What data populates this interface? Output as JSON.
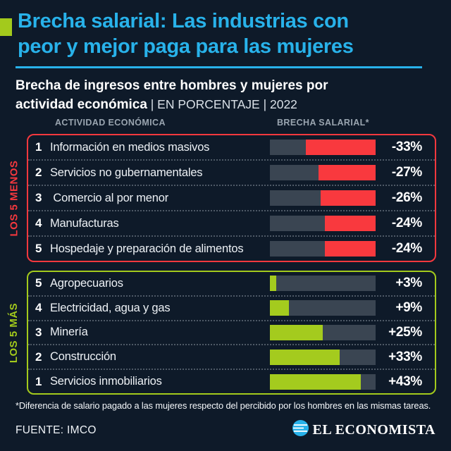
{
  "header": {
    "title_line1": "Brecha salarial: Las industrias con",
    "title_line2": "peor y mejor paga para las mujeres"
  },
  "subtitle": {
    "bold_line1": "Brecha de ingresos entre hombres y mujeres por",
    "bold_line2": "actividad económica",
    "meta": " | EN PORCENTAJE | 2022"
  },
  "columns": {
    "activity": "ACTIVIDAD ECONÓMICA",
    "gap": "BRECHA SALARIAL*"
  },
  "chart_data": {
    "type": "bar",
    "title": "Brecha salarial: Las industrias con peor y mejor paga para las mujeres",
    "subtitle": "Brecha de ingresos entre hombres y mujeres por actividad económica",
    "unit": "porcentaje",
    "year": "2022",
    "scale_max": 50,
    "xlim": [
      0,
      50
    ],
    "legend_position": "none",
    "grid": false,
    "groups": [
      {
        "name": "LOS 5 MENOS",
        "direction": "negative",
        "color": "#f9393e",
        "rows": [
          {
            "rank": "1",
            "label": "Información en medios masivos",
            "value": -33,
            "display": "-33%"
          },
          {
            "rank": "2",
            "label": "Servicios no gubernamentales",
            "value": -27,
            "display": "-27%"
          },
          {
            "rank": "3",
            "label": " Comercio al por menor",
            "value": -26,
            "display": "-26%"
          },
          {
            "rank": "4",
            "label": "Manufacturas",
            "value": -24,
            "display": "-24%"
          },
          {
            "rank": "5",
            "label": "Hospedaje y preparación de alimentos",
            "value": -24,
            "display": "-24%"
          }
        ]
      },
      {
        "name": "LOS 5 MÁS",
        "direction": "positive",
        "color": "#a4cb1e",
        "rows": [
          {
            "rank": "5",
            "label": "Agropecuarios",
            "value": 3,
            "display": "+3%"
          },
          {
            "rank": "4",
            "label": "Electricidad, agua y gas",
            "value": 9,
            "display": "+9%"
          },
          {
            "rank": "3",
            "label": "Minería",
            "value": 25,
            "display": "+25%"
          },
          {
            "rank": "2",
            "label": "Construcción",
            "value": 33,
            "display": "+33%"
          },
          {
            "rank": "1",
            "label": "Servicios inmobiliarios",
            "value": 43,
            "display": "+43%"
          }
        ]
      }
    ]
  },
  "footer": {
    "footnote": "*Diferencia de salario pagado a las mujeres respecto del percibido por los hombres en las mismas tareas.",
    "source": "FUENTE: IMCO",
    "brand": "EL ECONOMISTA"
  },
  "colors": {
    "background": "#0e1a29",
    "accent_cyan": "#28b2ea",
    "accent_green": "#a4cb1e",
    "accent_red": "#f9393e",
    "bar_track": "#3a4552",
    "column_header": "#9aa5b0"
  }
}
